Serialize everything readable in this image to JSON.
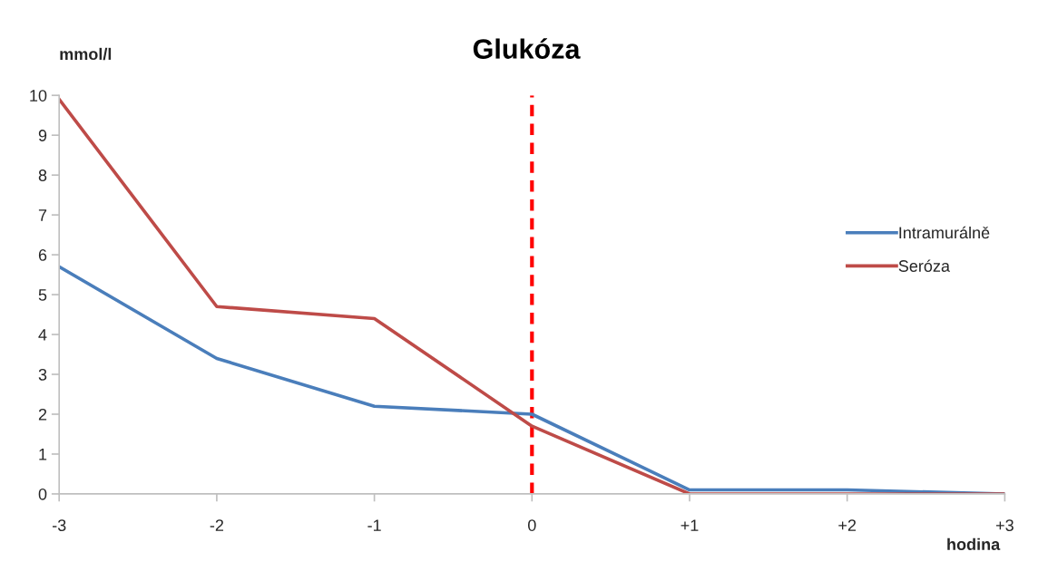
{
  "chart_data": {
    "type": "line",
    "title": "Glukóza",
    "xlabel": "hodina",
    "ylabel": "mmol/l",
    "x": [
      -3,
      -2,
      -1,
      0,
      1,
      2,
      3
    ],
    "series": [
      {
        "name": "Intramurálně",
        "color": "#4a7ebb",
        "values": [
          5.7,
          3.4,
          2.2,
          2.0,
          0.1,
          0.1,
          0
        ]
      },
      {
        "name": "Seróza",
        "color": "#be4b48",
        "values": [
          9.9,
          4.7,
          4.4,
          1.7,
          0,
          0,
          0
        ]
      }
    ],
    "xlim": [
      -3,
      3
    ],
    "xticks": [
      -3,
      -2,
      -1,
      0,
      {
        "value": 1,
        "label": "+1"
      },
      {
        "value": 2,
        "label": "+2"
      },
      {
        "value": 3,
        "label": "+3"
      }
    ],
    "ylim": [
      0,
      10
    ],
    "yticks": [
      0,
      1,
      2,
      3,
      4,
      5,
      6,
      7,
      8,
      9,
      10
    ],
    "ref_lines": [
      {
        "axis": "x",
        "value": 0,
        "color": "#ff0000",
        "line_style": "dashed"
      }
    ],
    "grid": false,
    "legend": "right",
    "marker": "none",
    "line_style": "solid"
  }
}
